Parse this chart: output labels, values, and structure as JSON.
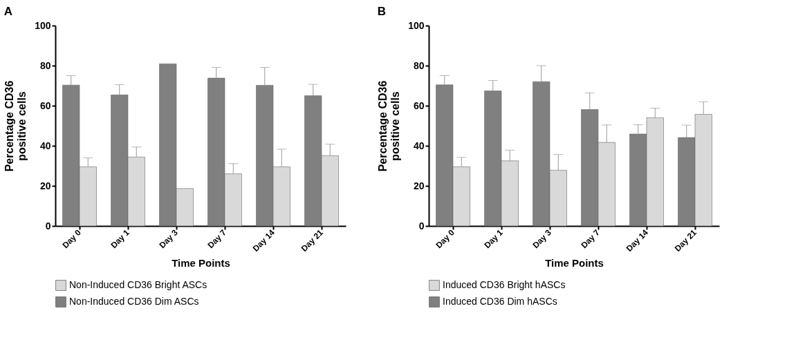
{
  "chart_data": [
    {
      "type": "bar",
      "title": "A",
      "xlabel": "Time Points",
      "ylabel": "Percentage CD36\npositive cells",
      "categories": [
        "Day 0",
        "Day 1",
        "Day 3",
        "Day 7",
        "Day 14",
        "Day 21"
      ],
      "ylim": [
        0,
        100
      ],
      "yticks": [
        0,
        20,
        40,
        60,
        80,
        100
      ],
      "legend": "bottom",
      "grid": false,
      "series": [
        {
          "name": "Non-Induced CD36 Dim ASCs",
          "color": "#808080",
          "values": [
            70.3,
            65.4,
            80.9,
            73.8,
            70.2,
            65
          ],
          "errors": [
            [
              70.3,
              75
            ],
            [
              65.4,
              70.5
            ],
            null,
            [
              73.8,
              79.1
            ],
            [
              70.2,
              79.1
            ],
            [
              65,
              70.7
            ]
          ]
        },
        {
          "name": "Non-Induced CD36 Bright ASCs",
          "color": "#d9d9d9",
          "values": [
            29.5,
            34.4,
            18.7,
            26,
            29.5,
            35.1
          ],
          "errors": [
            [
              29.5,
              34
            ],
            [
              34.4,
              39.4
            ],
            null,
            [
              26,
              31.1
            ],
            [
              29.5,
              38.3
            ],
            [
              35.1,
              40.8
            ]
          ]
        }
      ]
    },
    {
      "type": "bar",
      "title": "B",
      "xlabel": "Time Points",
      "ylabel": "Percentage CD36\npositive cells",
      "categories": [
        "Day 0",
        "Day 1",
        "Day 3",
        "Day 7",
        "Day 14",
        "Day 21"
      ],
      "ylim": [
        0,
        100
      ],
      "yticks": [
        0,
        20,
        40,
        60,
        80,
        100
      ],
      "legend": "bottom",
      "grid": false,
      "series": [
        {
          "name": "Induced CD36 Dim hASCs",
          "color": "#808080",
          "values": [
            70.4,
            67.4,
            72,
            58.1,
            45.9,
            44.1
          ],
          "errors": [
            [
              70.4,
              75
            ],
            [
              67.4,
              72.6
            ],
            [
              72,
              80
            ],
            [
              58.1,
              66.4
            ],
            [
              45.9,
              50.5
            ],
            [
              44.1,
              50.3
            ]
          ]
        },
        {
          "name": "Induced CD36 Bright hASCs",
          "color": "#d9d9d9",
          "values": [
            29.5,
            32.5,
            27.8,
            41.7,
            54,
            55.7
          ],
          "errors": [
            [
              29.5,
              34.2
            ],
            [
              32.5,
              37.8
            ],
            [
              27.8,
              35.7
            ],
            [
              41.7,
              50.4
            ],
            [
              54,
              58.8
            ],
            [
              55.7,
              62
            ]
          ]
        }
      ]
    }
  ]
}
